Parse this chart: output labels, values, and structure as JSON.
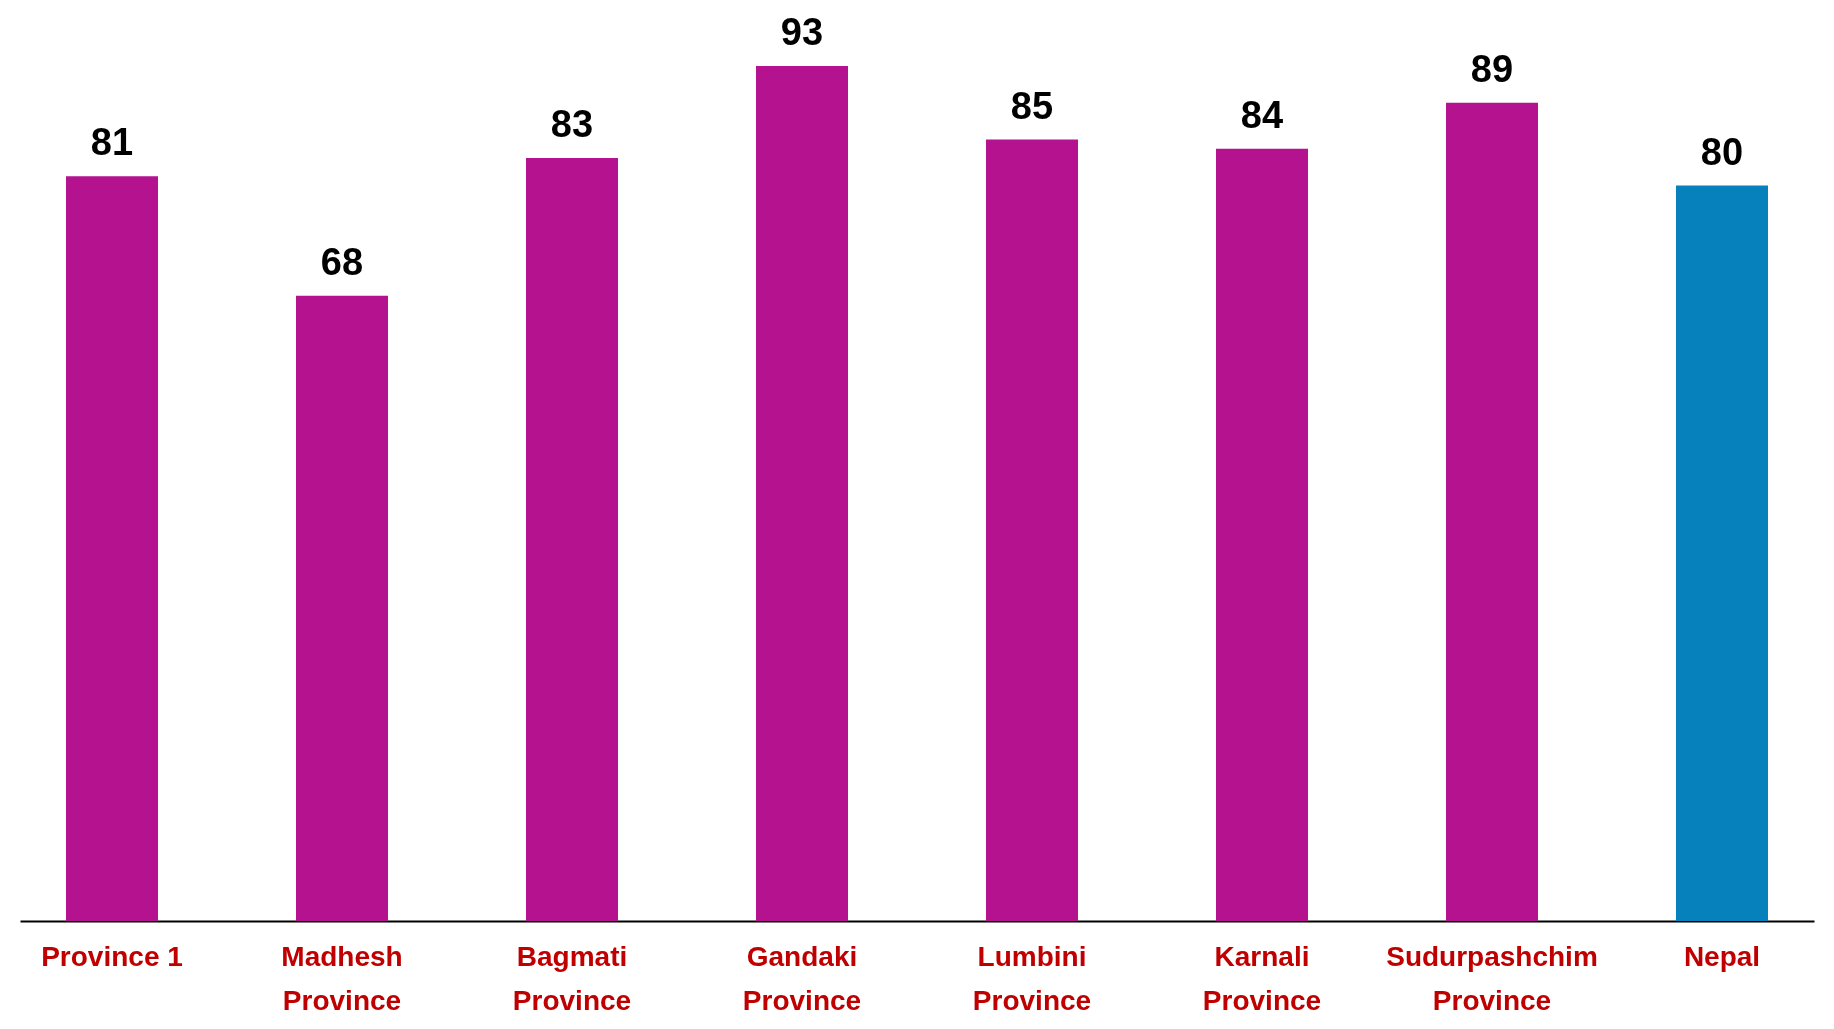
{
  "chart_data": {
    "type": "bar",
    "categories": [
      "Province 1",
      "Madhesh Province",
      "Bagmati Province",
      "Gandaki Province",
      "Lumbini Province",
      "Karnali Province",
      "Sudurpashchim Province",
      "Nepal"
    ],
    "values": [
      81,
      68,
      83,
      93,
      85,
      84,
      89,
      80
    ],
    "colors": [
      "#b5128f",
      "#b5128f",
      "#b5128f",
      "#b5128f",
      "#b5128f",
      "#b5128f",
      "#b5128f",
      "#0781bc"
    ],
    "data_labels": true
  }
}
